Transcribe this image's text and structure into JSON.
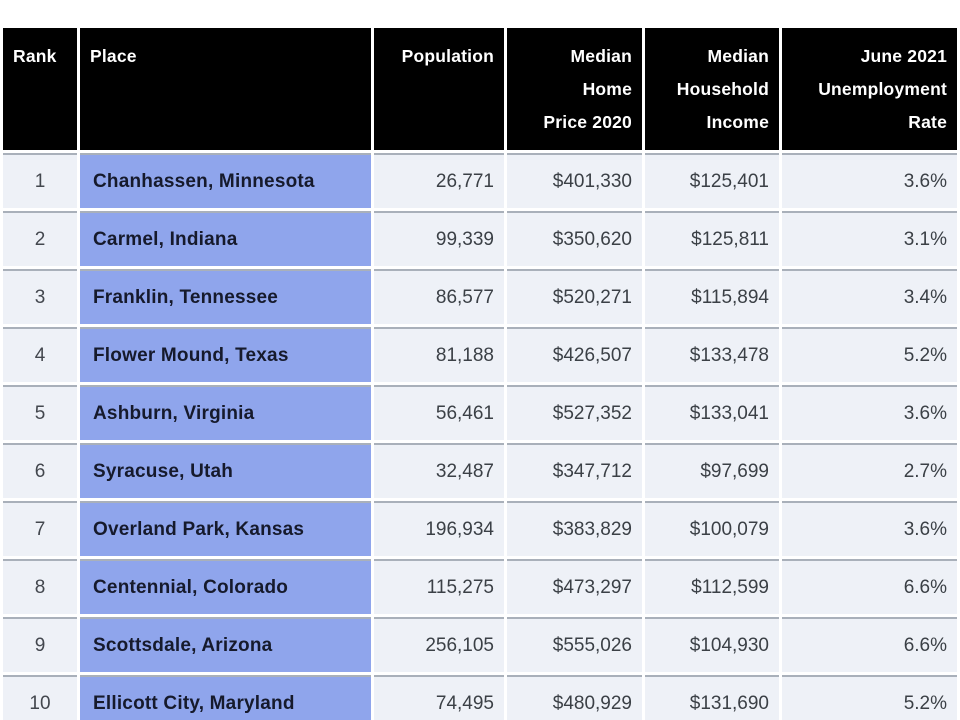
{
  "colors": {
    "header_bg": "#000000",
    "header_text": "#ffffff",
    "place_cell_bg": "#8fa5ec",
    "place_cell_text": "#161a2c",
    "data_cell_bg": "#eef1f7",
    "data_cell_text": "#3b4046",
    "row_separator": "#a9b0ba",
    "page_bg": "#ffffff"
  },
  "table": {
    "header": {
      "rank": "Rank",
      "place": "Place",
      "population": "Population",
      "home_price": "Median\nHome\nPrice 2020",
      "income": "Median\nHousehold\nIncome",
      "unemployment": "June 2021\nUnemployment\nRate"
    },
    "rows": [
      {
        "rank": "1",
        "place": "Chanhassen, Minnesota",
        "population": "26,771",
        "home_price": "$401,330",
        "income": "$125,401",
        "unemployment": "3.6%"
      },
      {
        "rank": "2",
        "place": "Carmel, Indiana",
        "population": "99,339",
        "home_price": "$350,620",
        "income": "$125,811",
        "unemployment": "3.1%"
      },
      {
        "rank": "3",
        "place": "Franklin, Tennessee",
        "population": "86,577",
        "home_price": "$520,271",
        "income": "$115,894",
        "unemployment": "3.4%"
      },
      {
        "rank": "4",
        "place": "Flower Mound, Texas",
        "population": "81,188",
        "home_price": "$426,507",
        "income": "$133,478",
        "unemployment": "5.2%"
      },
      {
        "rank": "5",
        "place": "Ashburn, Virginia",
        "population": "56,461",
        "home_price": "$527,352",
        "income": "$133,041",
        "unemployment": "3.6%"
      },
      {
        "rank": "6",
        "place": "Syracuse, Utah",
        "population": "32,487",
        "home_price": "$347,712",
        "income": "$97,699",
        "unemployment": "2.7%"
      },
      {
        "rank": "7",
        "place": "Overland Park, Kansas",
        "population": "196,934",
        "home_price": "$383,829",
        "income": "$100,079",
        "unemployment": "3.6%"
      },
      {
        "rank": "8",
        "place": "Centennial, Colorado",
        "population": "115,275",
        "home_price": "$473,297",
        "income": "$112,599",
        "unemployment": "6.6%"
      },
      {
        "rank": "9",
        "place": "Scottsdale, Arizona",
        "population": "256,105",
        "home_price": "$555,026",
        "income": "$104,930",
        "unemployment": "6.6%"
      },
      {
        "rank": "10",
        "place": "Ellicott City, Maryland",
        "population": "74,495",
        "home_price": "$480,929",
        "income": "$131,690",
        "unemployment": "5.2%"
      }
    ]
  }
}
